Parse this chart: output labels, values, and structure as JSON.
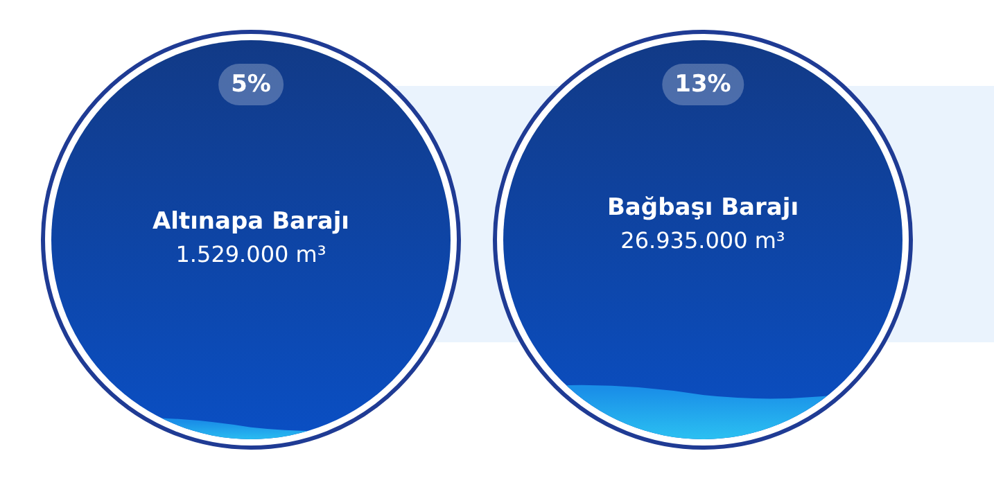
{
  "chart_data": {
    "type": "other",
    "categories": [
      "Altınapa Barajı",
      "Bağbaşı Barajı"
    ],
    "values": [
      5,
      13
    ],
    "value_labels": [
      "5%",
      "13%"
    ],
    "annotations": [
      "1.529.000 m³",
      "26.935.000 m³"
    ]
  }
}
